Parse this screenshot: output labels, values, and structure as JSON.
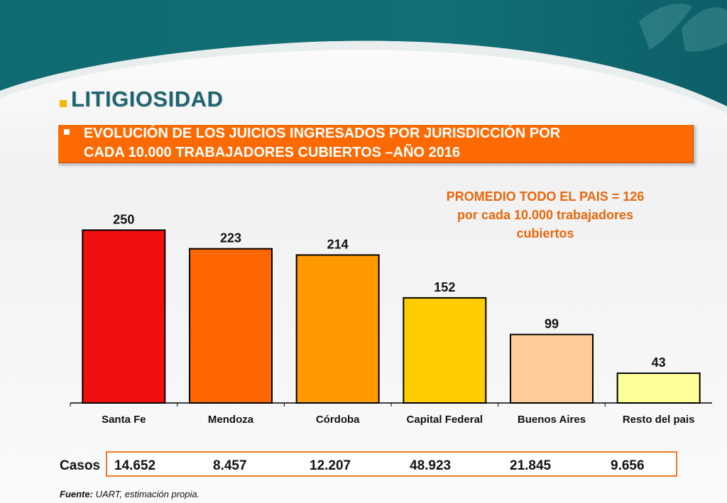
{
  "header": {
    "title": "LITIGIOSIDAD",
    "subtitle_line1": "EVOLUCIÓN DE LOS JUICIOS INGRESADOS POR JURISDICCIÓN POR",
    "subtitle_line2": "CADA 10.000 TRABAJADORES CUBIERTOS –AÑO 2016"
  },
  "note": {
    "line1": "PROMEDIO TODO EL PAIS = 126",
    "line2": "por cada 10.000 trabajadores",
    "line3": "cubiertos"
  },
  "chart_data": {
    "type": "bar",
    "categories": [
      "Santa Fe",
      "Mendoza",
      "Córdoba",
      "Capital Federal",
      "Buenos Aires",
      "Resto del pais"
    ],
    "values": [
      250,
      223,
      214,
      152,
      99,
      43
    ],
    "data_labels": [
      "250",
      "223",
      "214",
      "152",
      "99",
      "43"
    ],
    "bar_colors": [
      "#f01010",
      "#ff6600",
      "#ff9900",
      "#ffcc00",
      "#ffcc99",
      "#ffff99"
    ],
    "ylim": [
      0,
      275
    ],
    "grid": false,
    "legend": "none"
  },
  "cases": {
    "label": "Casos",
    "values": [
      "14.652",
      "8.457",
      "12.207",
      "48.923",
      "21.845",
      "9.656"
    ]
  },
  "source": {
    "label": "Fuente:",
    "text": " UART, estimación propia."
  }
}
